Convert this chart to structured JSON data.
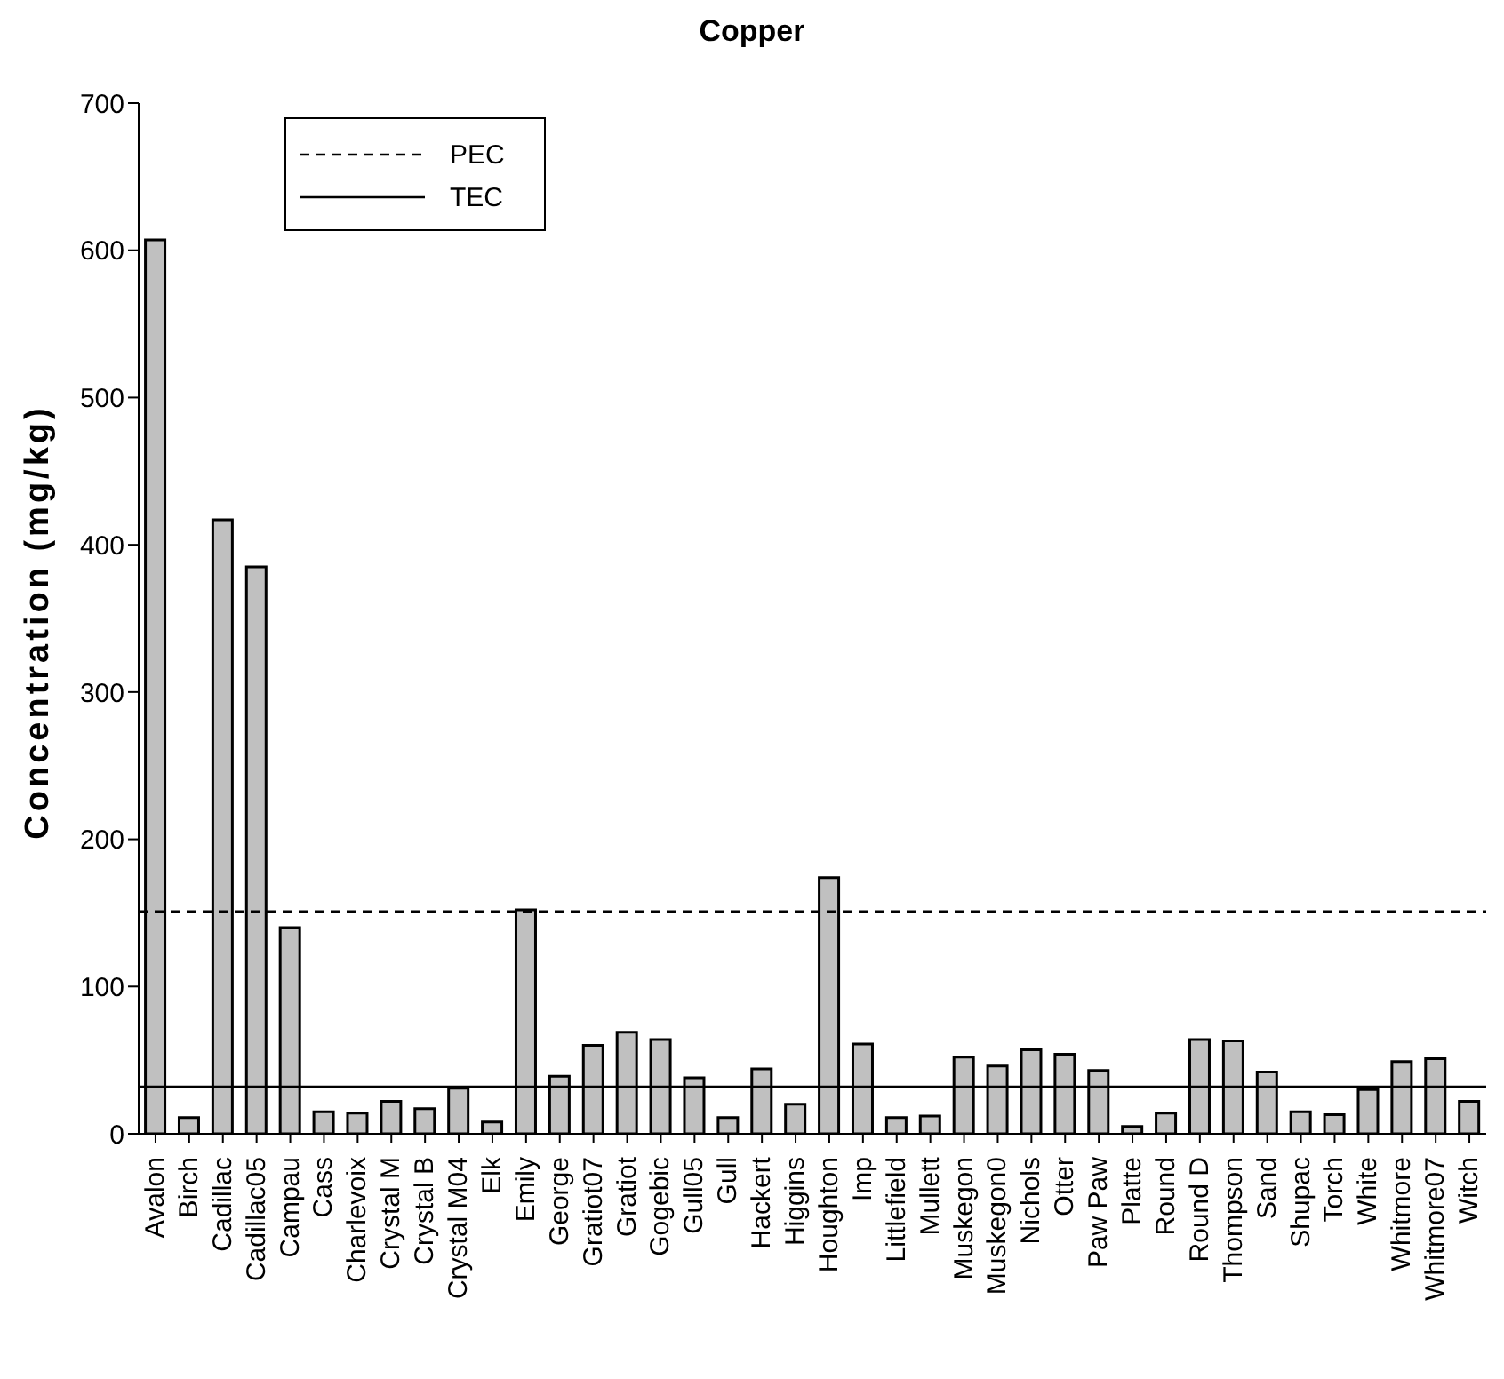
{
  "chart_data": {
    "type": "bar",
    "title": "Copper",
    "ylabel": "Concentration (mg/kg)",
    "categories": [
      "Avalon",
      "Birch",
      "Cadillac",
      "Cadillac05",
      "Campau",
      "Cass",
      "Charlevoix",
      "Crystal M",
      "Crystal B",
      "Crystal M04",
      "Elk",
      "Emily",
      "George",
      "Gratiot07",
      "Gratiot",
      "Gogebic",
      "Gull05",
      "Gull",
      "Hackert",
      "Higgins",
      "Houghton",
      "Imp",
      "Littlefield",
      "Mullett",
      "Muskegon",
      "Muskegon0",
      "Nichols",
      "Otter",
      "Paw Paw",
      "Platte",
      "Round",
      "Round D",
      "Thompson",
      "Sand",
      "Shupac",
      "Torch",
      "White",
      "Whitmore",
      "Whitmore07",
      "Witch"
    ],
    "values": [
      607,
      11,
      417,
      385,
      140,
      15,
      14,
      22,
      17,
      31,
      8,
      152,
      39,
      60,
      69,
      64,
      38,
      11,
      44,
      20,
      174,
      61,
      11,
      12,
      52,
      46,
      57,
      54,
      43,
      5,
      14,
      64,
      63,
      42,
      15,
      13,
      30,
      49,
      51,
      22
    ],
    "color": "#c0c0c0",
    "ylim": [
      0,
      700
    ],
    "yticks": [
      0,
      100,
      200,
      300,
      400,
      500,
      600,
      700
    ],
    "ref_lines": [
      {
        "axis": "y",
        "value": 151,
        "label": "PEC",
        "color": "#000000",
        "line_style": "dashed"
      },
      {
        "axis": "y",
        "value": 32,
        "label": "TEC",
        "color": "#000000",
        "line_style": "solid"
      }
    ],
    "grid": false,
    "legend": "top left"
  }
}
